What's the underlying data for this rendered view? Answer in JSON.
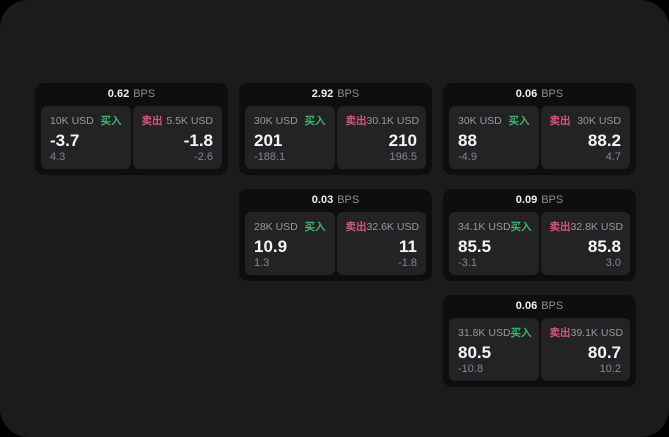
{
  "labels": {
    "bps": "BPS",
    "buy": "买入",
    "sell": "卖出"
  },
  "colors": {
    "frame": "#1b1b1d",
    "card": "#0e0e10",
    "panel": "#232326",
    "buy": "#3cb46d",
    "sell": "#d25876"
  },
  "cards": [
    {
      "bps": "0.62",
      "buy": {
        "amount": "10K USD",
        "price": "-3.7",
        "delta": "4.3"
      },
      "sell": {
        "amount": "5.5K USD",
        "price": "-1.8",
        "delta": "-2.6"
      }
    },
    {
      "bps": "2.92",
      "buy": {
        "amount": "30K USD",
        "price": "201",
        "delta": "-188.1"
      },
      "sell": {
        "amount": "30.1K USD",
        "price": "210",
        "delta": "196.5"
      }
    },
    {
      "bps": "0.06",
      "buy": {
        "amount": "30K USD",
        "price": "88",
        "delta": "-4.9"
      },
      "sell": {
        "amount": "30K USD",
        "price": "88.2",
        "delta": "4.7"
      }
    },
    {
      "bps": "0.03",
      "buy": {
        "amount": "28K USD",
        "price": "10.9",
        "delta": "1.3"
      },
      "sell": {
        "amount": "32.6K USD",
        "price": "11",
        "delta": "-1.8"
      }
    },
    {
      "bps": "0.09",
      "buy": {
        "amount": "34.1K USD",
        "price": "85.5",
        "delta": "-3.1"
      },
      "sell": {
        "amount": "32.8K USD",
        "price": "85.8",
        "delta": "3.0"
      }
    },
    {
      "bps": "0.06",
      "buy": {
        "amount": "31.8K USD",
        "price": "80.5",
        "delta": "-10.8"
      },
      "sell": {
        "amount": "39.1K USD",
        "price": "80.7",
        "delta": "10.2"
      }
    }
  ]
}
